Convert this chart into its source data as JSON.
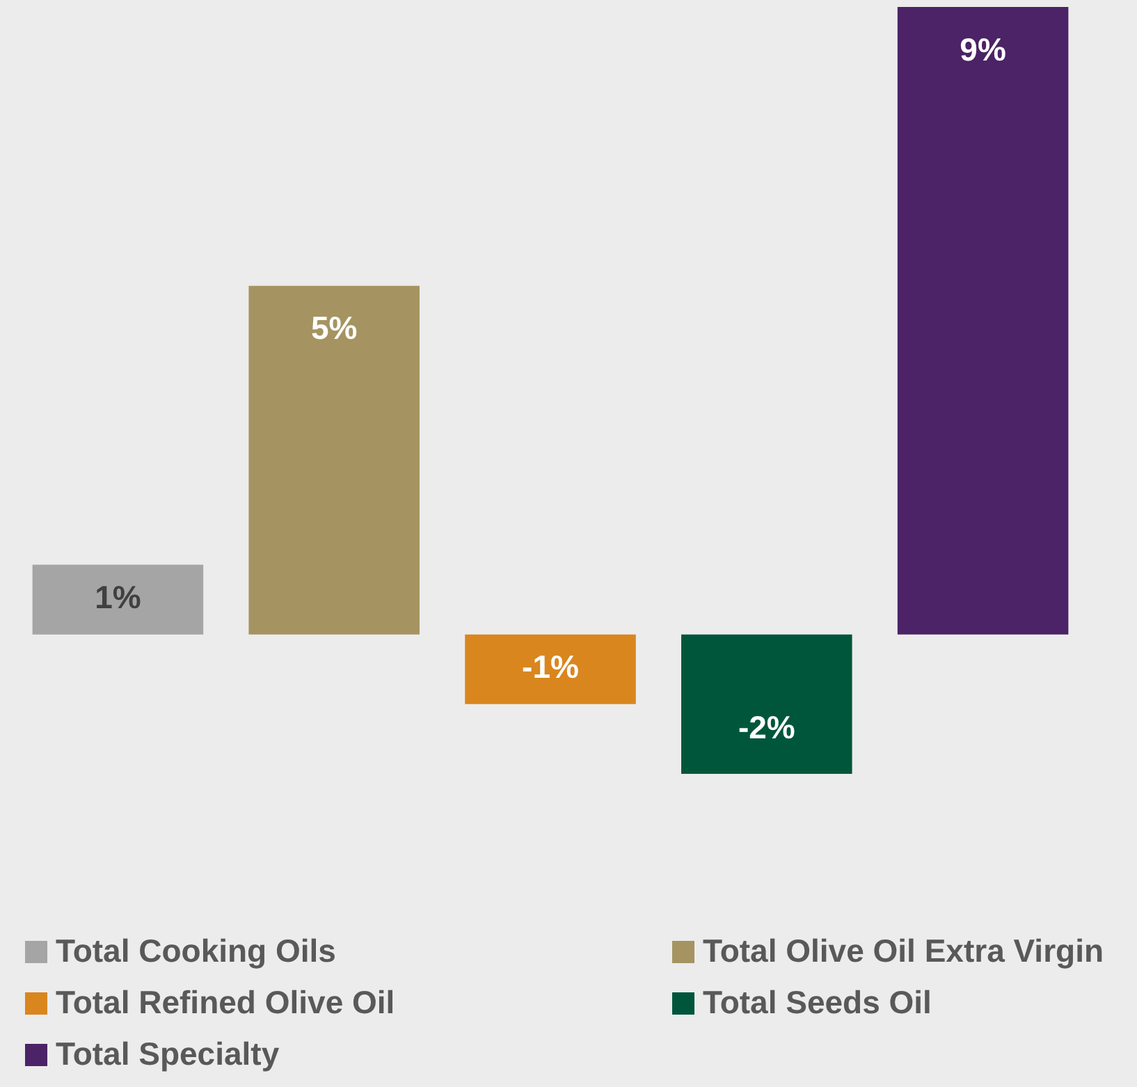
{
  "chart_data": {
    "type": "bar",
    "categories": [
      null
    ],
    "series": [
      {
        "name": "Total Cooking Oils",
        "color": "#a5a5a5",
        "values": [
          1
        ],
        "value_labels": [
          "1%"
        ]
      },
      {
        "name": "Total Olive Oil Extra Virgin",
        "color": "#a59461",
        "values": [
          5
        ],
        "value_labels": [
          "5%"
        ]
      },
      {
        "name": "Total Refined Olive Oil",
        "color": "#d9861e",
        "values": [
          -1
        ],
        "value_labels": [
          "-1%"
        ]
      },
      {
        "name": "Total Seeds Oil",
        "color": "#00563b",
        "values": [
          -2
        ],
        "value_labels": [
          "-2%"
        ]
      },
      {
        "name": "Total Specialty",
        "color": "#4b2366",
        "values": [
          9
        ],
        "value_labels": [
          "9%"
        ]
      }
    ],
    "legend": "bottom"
  }
}
